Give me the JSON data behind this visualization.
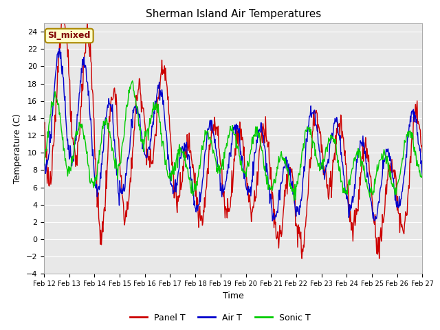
{
  "title": "Sherman Island Air Temperatures",
  "xlabel": "Time",
  "ylabel": "Temperature (C)",
  "annotation": "SI_mixed",
  "ylim": [
    -4,
    25
  ],
  "yticks": [
    -4,
    -2,
    0,
    2,
    4,
    6,
    8,
    10,
    12,
    14,
    16,
    18,
    20,
    22,
    24
  ],
  "xtick_labels": [
    "Feb 12",
    "Feb 13",
    "Feb 14",
    "Feb 15",
    "Feb 16",
    "Feb 17",
    "Feb 18",
    "Feb 19",
    "Feb 20",
    "Feb 21",
    "Feb 22",
    "Feb 23",
    "Feb 24",
    "Feb 25",
    "Feb 26",
    "Feb 27"
  ],
  "colors": {
    "panel_t": "#cc0000",
    "air_t": "#0000cc",
    "sonic_t": "#00cc00",
    "plot_bg": "#e8e8e8",
    "annotation_bg": "#ffffcc",
    "annotation_border": "#aa8800",
    "annotation_text": "#800000"
  },
  "legend": [
    "Panel T",
    "Air T",
    "Sonic T"
  ],
  "linewidth": 1.0,
  "title_fontsize": 11,
  "axis_fontsize": 9,
  "tick_fontsize": 8,
  "legend_fontsize": 9
}
